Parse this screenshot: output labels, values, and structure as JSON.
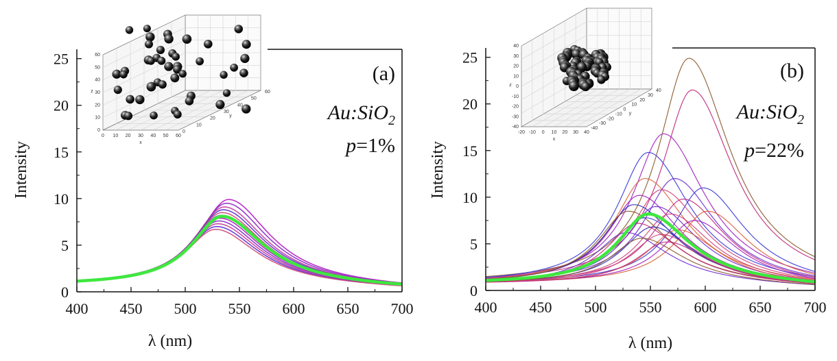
{
  "chart_data": [
    {
      "type": "line",
      "panel": "(a)",
      "annotation_material": "Au:SiO",
      "annotation_subscript": "2",
      "annotation_p_var": "p",
      "annotation_p_value": "=1%",
      "xlabel": "λ (nm)",
      "ylabel": "Intensity",
      "xlim": [
        400,
        700
      ],
      "ylim": [
        0,
        26
      ],
      "xticks": [
        400,
        450,
        500,
        550,
        600,
        650,
        700
      ],
      "yticks": [
        0,
        5,
        10,
        15,
        20,
        25
      ],
      "grid": false,
      "colors": {
        "individual": [
          "#b01ac0",
          "#8a28c8",
          "#c63a9a",
          "#5a2fd0",
          "#d04a7a",
          "#3b3fd8"
        ],
        "average": "#3ee83e"
      },
      "series": [
        {
          "peak_x": 540,
          "peak_y": 9.9,
          "color_index": 0
        },
        {
          "peak_x": 538,
          "peak_y": 9.5,
          "color_index": 1
        },
        {
          "peak_x": 536,
          "peak_y": 9.1,
          "color_index": 2
        },
        {
          "peak_x": 535,
          "peak_y": 8.8,
          "color_index": 3
        },
        {
          "peak_x": 534,
          "peak_y": 8.5,
          "color_index": 4
        },
        {
          "peak_x": 533,
          "peak_y": 8.2,
          "color_index": 5
        },
        {
          "peak_x": 532,
          "peak_y": 7.9,
          "color_index": 0
        },
        {
          "peak_x": 531,
          "peak_y": 7.6,
          "color_index": 1
        },
        {
          "peak_x": 530,
          "peak_y": 7.3,
          "color_index": 2
        },
        {
          "peak_x": 529,
          "peak_y": 7.0,
          "color_index": 3
        },
        {
          "peak_x": 528,
          "peak_y": 6.7,
          "color_index": 4
        },
        {
          "peak_x": 534,
          "peak_y": 8.0,
          "color_index": 5
        }
      ],
      "average": {
        "peak_x": 534,
        "peak_y": 8.1
      }
    },
    {
      "type": "line",
      "panel": "(b)",
      "annotation_material": "Au:SiO",
      "annotation_subscript": "2",
      "annotation_p_var": "p",
      "annotation_p_value": "=22%",
      "xlabel": "λ (nm)",
      "ylabel": "Intensity",
      "xlim": [
        400,
        700
      ],
      "ylim": [
        0,
        26
      ],
      "xticks": [
        400,
        450,
        500,
        550,
        600,
        650,
        700
      ],
      "yticks": [
        0,
        5,
        10,
        15,
        20,
        25
      ],
      "grid": false,
      "colors": {
        "individual": [
          "#8a5a2a",
          "#c0287a",
          "#3a3ad8",
          "#a020c0",
          "#d8603a",
          "#6a2ad0",
          "#d0407a",
          "#2a2ab0"
        ],
        "average": "#3ee83e"
      },
      "series": [
        {
          "peak_x": 585,
          "peak_y": 24.9,
          "color_index": 0
        },
        {
          "peak_x": 588,
          "peak_y": 21.5,
          "color_index": 1
        },
        {
          "peak_x": 562,
          "peak_y": 16.8,
          "color_index": 3
        },
        {
          "peak_x": 548,
          "peak_y": 14.8,
          "color_index": 2
        },
        {
          "peak_x": 545,
          "peak_y": 12.0,
          "color_index": 4
        },
        {
          "peak_x": 572,
          "peak_y": 12.0,
          "color_index": 5
        },
        {
          "peak_x": 598,
          "peak_y": 11.0,
          "color_index": 2
        },
        {
          "peak_x": 560,
          "peak_y": 10.8,
          "color_index": 6
        },
        {
          "peak_x": 540,
          "peak_y": 10.2,
          "color_index": 3
        },
        {
          "peak_x": 580,
          "peak_y": 9.8,
          "color_index": 1
        },
        {
          "peak_x": 535,
          "peak_y": 9.2,
          "color_index": 7
        },
        {
          "peak_x": 555,
          "peak_y": 9.0,
          "color_index": 5
        },
        {
          "peak_x": 602,
          "peak_y": 8.5,
          "color_index": 4
        },
        {
          "peak_x": 530,
          "peak_y": 8.5,
          "color_index": 0
        },
        {
          "peak_x": 568,
          "peak_y": 8.2,
          "color_index": 6
        },
        {
          "peak_x": 545,
          "peak_y": 7.8,
          "color_index": 2
        },
        {
          "peak_x": 590,
          "peak_y": 7.5,
          "color_index": 3
        },
        {
          "peak_x": 538,
          "peak_y": 7.2,
          "color_index": 1
        },
        {
          "peak_x": 552,
          "peak_y": 6.8,
          "color_index": 7
        },
        {
          "peak_x": 575,
          "peak_y": 6.5,
          "color_index": 4
        },
        {
          "peak_x": 528,
          "peak_y": 6.2,
          "color_index": 5
        },
        {
          "peak_x": 560,
          "peak_y": 6.0,
          "color_index": 6
        },
        {
          "peak_x": 542,
          "peak_y": 5.6,
          "color_index": 0
        },
        {
          "peak_x": 565,
          "peak_y": 5.2,
          "color_index": 1
        }
      ],
      "average": {
        "peak_x": 548,
        "peak_y": 8.2
      }
    }
  ],
  "insets": [
    {
      "panel": "(a)",
      "tick_labels_vertical": [
        "60",
        "50",
        "40",
        "30",
        "20",
        "10",
        "0"
      ],
      "tick_labels_front": [
        "0",
        "10",
        "20",
        "30",
        "40",
        "50",
        "60"
      ],
      "tick_labels_side": [
        "0",
        "10",
        "20",
        "30",
        "40",
        "50",
        "60"
      ],
      "axis_letters": [
        "z",
        "x",
        "y"
      ]
    },
    {
      "panel": "(b)",
      "tick_labels_vertical": [
        "40",
        "30",
        "20",
        "10",
        "0",
        "-10",
        "-20",
        "-30",
        "-40"
      ],
      "tick_labels_front": [
        "-20",
        "-10",
        "0",
        "10",
        "20",
        "30",
        "40"
      ],
      "tick_labels_side": [
        "-40",
        "-30",
        "-20",
        "-10",
        "0",
        "10",
        "20",
        "30",
        "40"
      ],
      "axis_letters": [
        "z",
        "x",
        "y"
      ]
    }
  ]
}
